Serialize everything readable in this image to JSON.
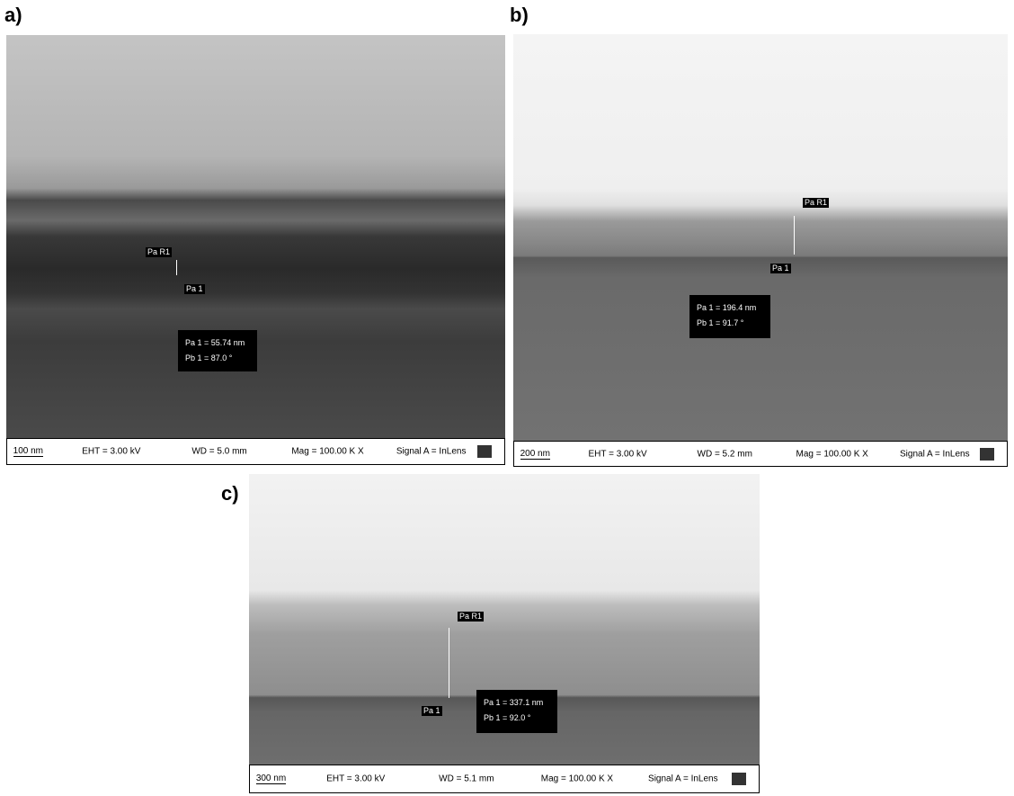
{
  "panels": [
    {
      "label": "a)",
      "top_marker": "Pa R1",
      "bottom_marker": "Pa 1",
      "measure": [
        "Pa 1 = 55.74 nm",
        "Pb 1 = 87.0 °"
      ],
      "footer": {
        "scale": "100 nm",
        "eht": "EHT = 3.00 kV",
        "wd": "WD = 5.0 mm",
        "mag": "Mag = 100.00 K X",
        "signal": "Signal A = InLens"
      }
    },
    {
      "label": "b)",
      "top_marker": "Pa R1",
      "bottom_marker": "Pa 1",
      "measure": [
        "Pa 1 = 196.4 nm",
        "Pb 1 = 91.7 °"
      ],
      "footer": {
        "scale": "200 nm",
        "eht": "EHT = 3.00 kV",
        "wd": "WD = 5.2 mm",
        "mag": "Mag = 100.00 K X",
        "signal": "Signal A = InLens"
      }
    },
    {
      "label": "c)",
      "top_marker": "Pa R1",
      "bottom_marker": "Pa 1",
      "measure": [
        "Pa 1 = 337.1 nm",
        "Pb 1 = 92.0 °"
      ],
      "footer": {
        "scale": "300 nm",
        "eht": "EHT = 3.00 kV",
        "wd": "WD = 5.1 mm",
        "mag": "Mag = 100.00 K X",
        "signal": "Signal A = InLens"
      }
    }
  ]
}
